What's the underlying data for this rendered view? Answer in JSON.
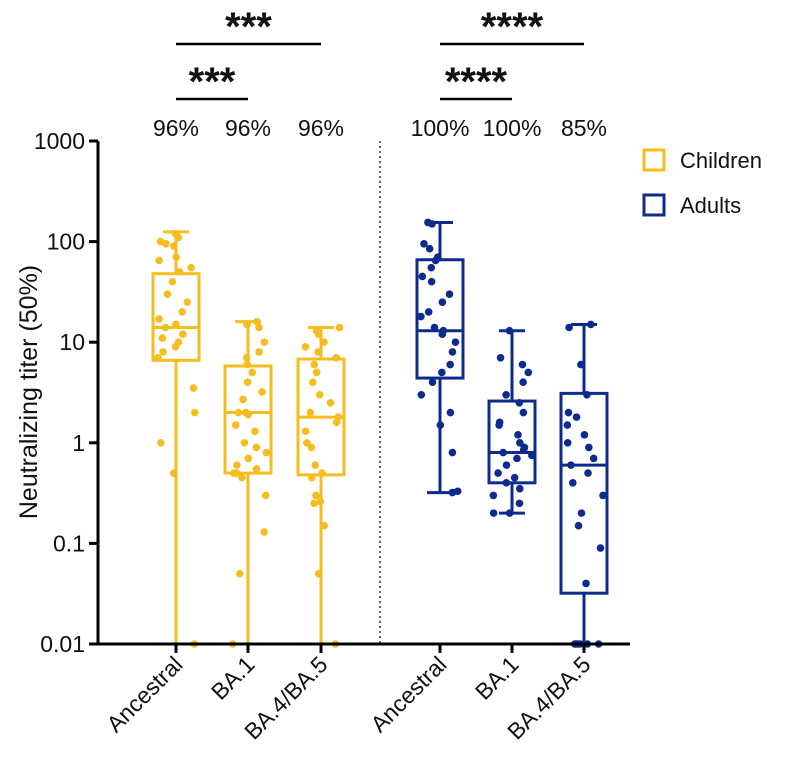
{
  "chart_data": {
    "type": "box",
    "ylabel": "Neutralizing titer (50%)",
    "yscale": "log",
    "ylim": [
      0.01,
      1000
    ],
    "y_ticks": [
      "0.01",
      "0.1",
      "1",
      "10",
      "100",
      "1000"
    ],
    "categories": [
      "Ancestral",
      "BA.1",
      "BA.4/BA.5",
      "Ancestral",
      "BA.1",
      "BA.4/BA.5"
    ],
    "legend": {
      "placement": "top-right",
      "entries": [
        "Children",
        "Adults"
      ]
    },
    "colors": {
      "Children": "#F5BD1F",
      "Adults": "#0D2A8E",
      "axis": "#000000"
    },
    "percentages": [
      "96%",
      "96%",
      "96%",
      "100%",
      "100%",
      "85%"
    ],
    "significance": [
      {
        "label": "***",
        "from": 0,
        "to": 2
      },
      {
        "label": "***",
        "from": 0,
        "to": 1
      },
      {
        "label": "****",
        "from": 3,
        "to": 5
      },
      {
        "label": "****",
        "from": 3,
        "to": 4
      }
    ],
    "series": [
      {
        "name": "Children",
        "groups": [
          {
            "category": "Ancestral",
            "min": 0.01,
            "q1": 6.6,
            "median": 14,
            "q3": 48,
            "max": 125,
            "points": [
              120,
              110,
              100,
              95,
              90,
              70,
              65,
              55,
              50,
              40,
              30,
              25,
              20,
              17,
              15,
              14,
              12,
              11,
              10,
              9,
              8,
              7,
              3.5,
              2,
              1,
              0.5,
              0.01
            ]
          },
          {
            "category": "BA.1",
            "min": 0.01,
            "q1": 0.5,
            "median": 2,
            "q3": 5.8,
            "max": 16,
            "points": [
              16,
              15,
              14,
              10,
              8,
              7,
              6,
              5,
              4,
              3.2,
              2.7,
              2,
              2,
              1.9,
              1.5,
              1.3,
              1,
              0.9,
              0.8,
              0.7,
              0.6,
              0.55,
              0.5,
              0.5,
              0.45,
              0.3,
              0.13,
              0.05,
              0.01
            ]
          },
          {
            "category": "BA.4/BA.5",
            "min": 0.01,
            "q1": 0.48,
            "median": 1.8,
            "q3": 6.8,
            "max": 14,
            "points": [
              14,
              13,
              12,
              10,
              9,
              8,
              7,
              6,
              5,
              4,
              3,
              2.5,
              2,
              1.8,
              1.6,
              1.3,
              1,
              0.9,
              0.6,
              0.5,
              0.45,
              0.3,
              0.26,
              0.25,
              0.15,
              0.05,
              0.01
            ]
          }
        ]
      },
      {
        "name": "Adults",
        "groups": [
          {
            "category": "Ancestral",
            "min": 0.32,
            "q1": 4.4,
            "median": 13,
            "q3": 66,
            "max": 155,
            "points": [
              155,
              150,
              95,
              85,
              70,
              65,
              55,
              45,
              40,
              30,
              25,
              20,
              18,
              14,
              13,
              12,
              10,
              8,
              6,
              5,
              4,
              3,
              2,
              1.5,
              0.8,
              0.33,
              0.32
            ]
          },
          {
            "category": "BA.1",
            "min": 0.2,
            "q1": 0.4,
            "median": 0.8,
            "q3": 2.6,
            "max": 13,
            "points": [
              13,
              7,
              6,
              5,
              4,
              3,
              2.5,
              2,
              1.6,
              1.5,
              1.2,
              1,
              0.9,
              0.85,
              0.8,
              0.75,
              0.7,
              0.6,
              0.5,
              0.45,
              0.4,
              0.35,
              0.3,
              0.25,
              0.2,
              0.2
            ]
          },
          {
            "category": "BA.4/BA.5",
            "min": 0.01,
            "q1": 0.032,
            "median": 0.6,
            "q3": 3.1,
            "max": 15,
            "points": [
              15,
              14,
              6,
              3,
              2,
              1.8,
              1.5,
              1.2,
              1,
              0.9,
              0.7,
              0.6,
              0.5,
              0.4,
              0.3,
              0.2,
              0.15,
              0.09,
              0.04,
              0.01,
              0.01,
              0.01,
              0.01,
              0.01,
              0.01
            ]
          }
        ]
      }
    ]
  }
}
